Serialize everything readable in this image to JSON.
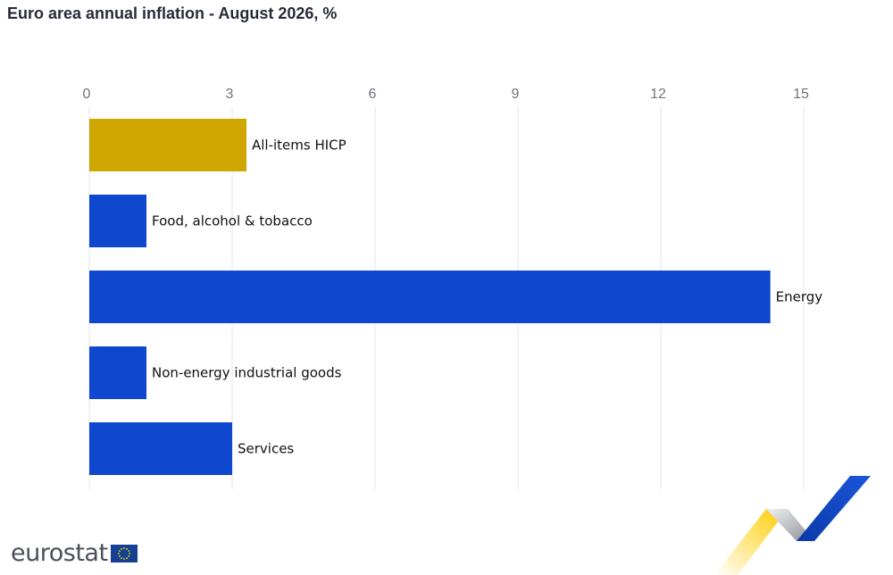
{
  "title": "Euro area annual inflation - August 2026, %",
  "brand": {
    "wordmark": "eurostat"
  },
  "colors": {
    "highlight": "#d0a700",
    "bar": "#0f48cf",
    "grid": "#e3e5e8",
    "tick_label": "#6f7480",
    "bar_label": "#111111"
  },
  "icons": [
    "eu-flag-icon",
    "eurostat-swoosh-icon"
  ],
  "chart_data": {
    "type": "bar",
    "orientation": "horizontal",
    "title": "Euro area annual inflation - August 2026, %",
    "categories": [
      "All-items HICP",
      "Food, alcohol & tobacco",
      "Energy",
      "Non-energy industrial goods",
      "Services"
    ],
    "values": [
      3.3,
      1.2,
      14.3,
      1.2,
      3.0
    ],
    "highlight_category": "All-items HICP",
    "xlim": [
      0,
      15
    ],
    "xticks": [
      0,
      3,
      6,
      9,
      12,
      15
    ],
    "xaxis_position": "top",
    "grid": true,
    "legend": "none"
  }
}
